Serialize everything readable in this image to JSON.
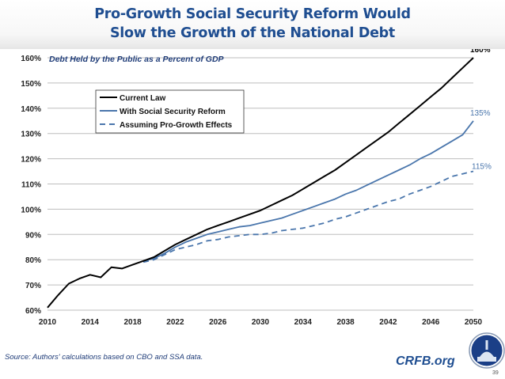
{
  "title": {
    "line1": "Pro-Growth Social Security Reform Would",
    "line2": "Slow the Growth of the National Debt"
  },
  "chart_data": {
    "type": "line",
    "title": "Debt Held by the Public as a Percent of GDP",
    "xlabel": "",
    "ylabel": "",
    "xlim": [
      2010,
      2050
    ],
    "ylim": [
      60,
      160
    ],
    "x_ticks": [
      "2010",
      "2014",
      "2018",
      "2022",
      "2026",
      "2030",
      "2034",
      "2038",
      "2042",
      "2046",
      "2050"
    ],
    "y_ticks": [
      "60%",
      "70%",
      "80%",
      "90%",
      "100%",
      "110%",
      "120%",
      "130%",
      "140%",
      "150%",
      "160%"
    ],
    "grid": true,
    "legend_position": "top-left",
    "series": [
      {
        "name": "Current Law",
        "color": "#000000",
        "style": "solid",
        "end_label": "160%",
        "x": [
          2010,
          2011,
          2012,
          2013,
          2014,
          2015,
          2016,
          2017,
          2018,
          2019,
          2020,
          2021,
          2022,
          2023,
          2024,
          2025,
          2026,
          2027,
          2028,
          2029,
          2030,
          2031,
          2032,
          2033,
          2034,
          2035,
          2036,
          2037,
          2038,
          2039,
          2040,
          2041,
          2042,
          2043,
          2044,
          2045,
          2046,
          2047,
          2048,
          2049,
          2050
        ],
        "y": [
          61,
          66,
          70.5,
          72.5,
          74,
          73,
          77,
          76.5,
          78,
          79.5,
          81,
          83.5,
          86,
          88,
          90,
          92,
          93.5,
          95,
          96.5,
          98,
          99.5,
          101.5,
          103.5,
          105.5,
          108,
          110.5,
          113,
          115.5,
          118.5,
          121.5,
          124.5,
          127.5,
          130.5,
          134,
          137.5,
          141,
          144.5,
          148,
          152,
          156,
          160
        ]
      },
      {
        "name": "With Social Security Reform",
        "color": "#4a76ac",
        "style": "solid",
        "end_label": "135%",
        "x": [
          2019,
          2020,
          2021,
          2022,
          2023,
          2024,
          2025,
          2026,
          2027,
          2028,
          2029,
          2030,
          2031,
          2032,
          2033,
          2034,
          2035,
          2036,
          2037,
          2038,
          2039,
          2040,
          2041,
          2042,
          2043,
          2044,
          2045,
          2046,
          2047,
          2048,
          2049,
          2050
        ],
        "y": [
          79.5,
          80.5,
          82.5,
          85,
          87,
          88.5,
          90,
          91,
          92,
          93,
          93.5,
          94.5,
          95.5,
          96.5,
          98,
          99.5,
          101,
          102.5,
          104,
          106,
          107.5,
          109.5,
          111.5,
          113.5,
          115.5,
          117.5,
          120,
          122,
          124.5,
          127,
          129.5,
          135
        ]
      },
      {
        "name": "Assuming Pro-Growth Effects",
        "color": "#4a76ac",
        "style": "dashed",
        "end_label": "115%",
        "x": [
          2019,
          2020,
          2021,
          2022,
          2023,
          2024,
          2025,
          2026,
          2027,
          2028,
          2029,
          2030,
          2031,
          2032,
          2033,
          2034,
          2035,
          2036,
          2037,
          2038,
          2039,
          2040,
          2041,
          2042,
          2043,
          2044,
          2045,
          2046,
          2047,
          2048,
          2049,
          2050
        ],
        "y": [
          79,
          80,
          82,
          84,
          85,
          86,
          87.5,
          88,
          89,
          89.5,
          90,
          90,
          90.5,
          91.5,
          92,
          92.5,
          93.5,
          94.5,
          96,
          97,
          98.5,
          100,
          101.5,
          103,
          104,
          106,
          107.5,
          109,
          111,
          113,
          114,
          115
        ]
      }
    ]
  },
  "footer": {
    "source": "Source: Authors' calculations based on CBO and SSA data.",
    "brand": "CRFB.org",
    "logo": "capitol-dome-logo",
    "slide_number": "39"
  }
}
